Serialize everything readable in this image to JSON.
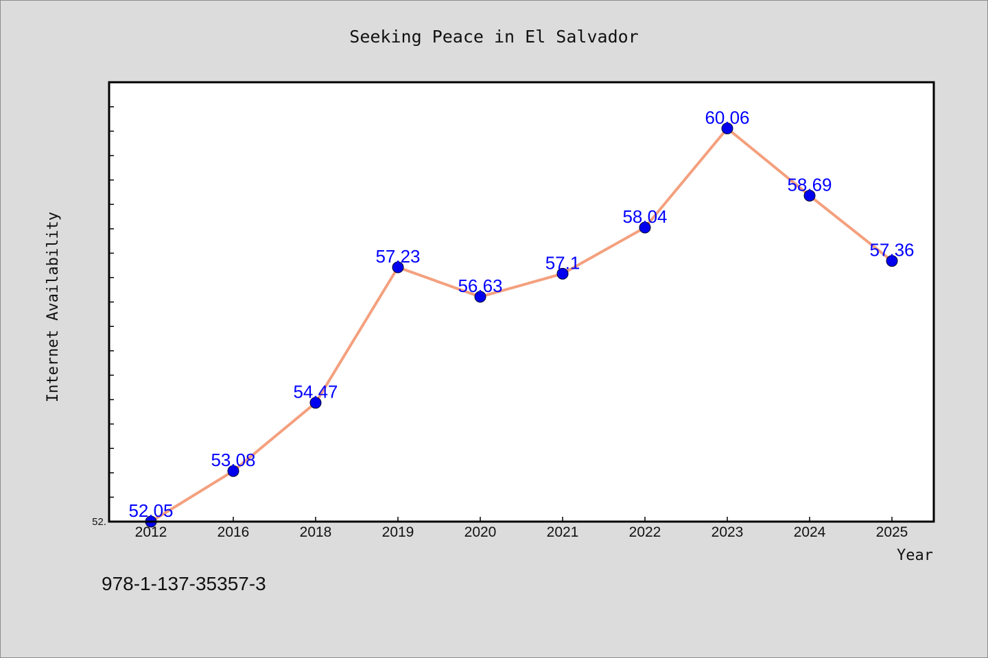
{
  "chart_data": {
    "type": "line",
    "title": "Seeking Peace in El Salvador",
    "xlabel": "Year",
    "ylabel": "Internet Availability",
    "categories": [
      "2012",
      "2016",
      "2018",
      "2019",
      "2020",
      "2021",
      "2022",
      "2023",
      "2024",
      "2025"
    ],
    "series": [
      {
        "values": [
          52.05,
          53.08,
          54.47,
          57.23,
          56.63,
          57.1,
          58.04,
          60.06,
          58.69,
          57.36
        ],
        "line_color": "#f4a07e",
        "marker_color": "#0000ee"
      }
    ],
    "data_labels": [
      "52.05",
      "53.08",
      "54.47",
      "57.23",
      "56.63",
      "57.1",
      "58.04",
      "60.06",
      "58.69",
      "57.36"
    ],
    "y_tick_labels": [
      "52."
    ],
    "ylim": [
      52.05,
      61.0
    ],
    "grid": false,
    "legend": false,
    "plot_background": "#ffffff",
    "page_background": "#dcdcdc"
  },
  "footer_text": "978-1-137-35357-3"
}
